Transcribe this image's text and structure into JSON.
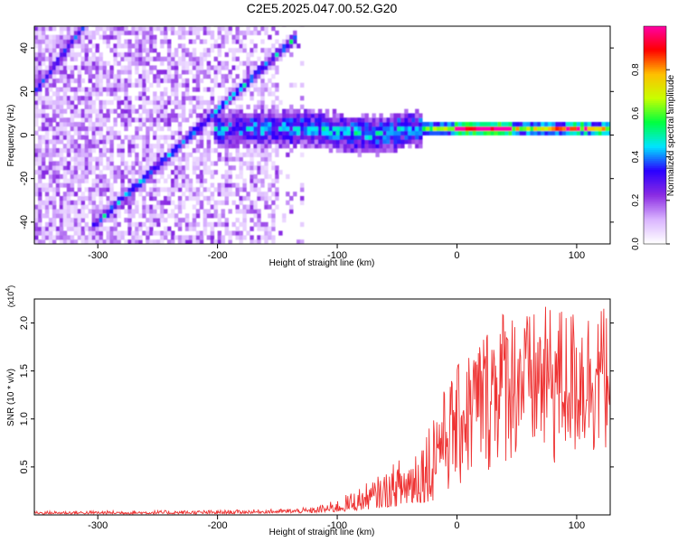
{
  "figure": {
    "title": "C2E5.2025.047.00.52.G20"
  },
  "chart_data": [
    {
      "type": "heatmap",
      "xlabel": "Height of straight line (km)",
      "ylabel": "Frequency (Hz)",
      "xlim": [
        -353,
        128
      ],
      "ylim": [
        -50,
        50
      ],
      "x_ticks": [
        -300,
        -200,
        -100,
        0,
        100
      ],
      "y_ticks": [
        -40,
        -20,
        0,
        20,
        40
      ],
      "grid": false,
      "colorbar": {
        "label": "Normalized spectral amplitude",
        "range": [
          0,
          1
        ],
        "ticks": [
          "0.0",
          "0.2",
          "0.4",
          "0.6",
          "0.8"
        ],
        "colors": [
          "#ffffff",
          "#d9b3ff",
          "#8a2be2",
          "#2a00ff",
          "#00e5ff",
          "#00ff40",
          "#c8ff00",
          "#ffbf00",
          "#ff0000",
          "#ff00aa"
        ]
      },
      "features": [
        {
          "kind": "diagonal_track",
          "from": [
            -300,
            -40
          ],
          "to": [
            -140,
            42
          ]
        },
        {
          "kind": "diagonal_track",
          "from": [
            -355,
            18
          ],
          "to": [
            -315,
            48
          ]
        },
        {
          "kind": "horizontal_band",
          "x_range": [
            -205,
            128
          ],
          "center_hz": 2,
          "peak_near_km": 20
        }
      ]
    },
    {
      "type": "line",
      "xlabel": "Height of straight line (km)",
      "ylabel": "SNR (10 * v/v)",
      "y_multiplier": "(x10",
      "y_multiplier_exp": "4",
      "xlim": [
        -353,
        128
      ],
      "ylim": [
        0,
        2.25
      ],
      "x_ticks": [
        -300,
        -200,
        -100,
        0,
        100
      ],
      "y_ticks": [
        "0.5",
        "1.0",
        "1.5",
        "2.0"
      ],
      "grid": false,
      "color": "#ee3333",
      "envelope": {
        "x": [
          -353,
          -200,
          -150,
          -120,
          -100,
          -80,
          -60,
          -40,
          -20,
          0,
          20,
          40,
          60,
          80,
          100,
          128
        ],
        "y_max": [
          0.04,
          0.05,
          0.06,
          0.08,
          0.16,
          0.3,
          0.45,
          0.7,
          1.1,
          1.55,
          1.9,
          2.2,
          2.1,
          2.2,
          2.15,
          2.2
        ],
        "y_min": [
          0.01,
          0.01,
          0.02,
          0.02,
          0.03,
          0.05,
          0.08,
          0.1,
          0.15,
          0.2,
          0.35,
          0.5,
          0.5,
          0.4,
          0.5,
          0.6
        ]
      }
    }
  ]
}
